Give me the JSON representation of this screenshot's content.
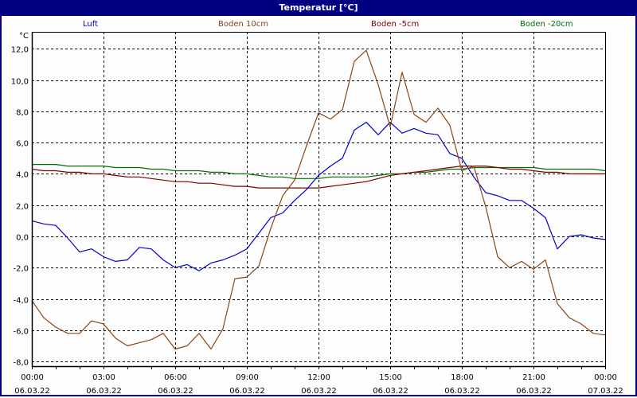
{
  "window": {
    "title": "Temperatur [°C]"
  },
  "legend": [
    {
      "label": "Luft",
      "color": "#0000cc"
    },
    {
      "label": "Boden 10cm",
      "color": "#8b4513"
    },
    {
      "label": "Boden -5cm",
      "color": "#800000"
    },
    {
      "label": "Boden -20cm",
      "color": "#007000"
    }
  ],
  "axis": {
    "y_unit": "°C",
    "y_ticks": [
      "12,0",
      "10,0",
      "8,0",
      "6,0",
      "4,0",
      "2,0",
      "0,0",
      "-2,0",
      "-4,0",
      "-6,0",
      "-8,0"
    ],
    "x_ticks": [
      {
        "time": "00:00",
        "date": "06.03.22"
      },
      {
        "time": "03:00",
        "date": "06.03.22"
      },
      {
        "time": "06:00",
        "date": "06.03.22"
      },
      {
        "time": "09:00",
        "date": "06.03.22"
      },
      {
        "time": "12:00",
        "date": "06.03.22"
      },
      {
        "time": "15:00",
        "date": "06.03.22"
      },
      {
        "time": "18:00",
        "date": "06.03.22"
      },
      {
        "time": "21:00",
        "date": "06.03.22"
      },
      {
        "time": "00:00",
        "date": "07.03.22"
      }
    ]
  },
  "chart_data": {
    "type": "line",
    "title": "Temperatur [°C]",
    "xlabel": "",
    "ylabel": "°C",
    "ylim": [
      -8.2,
      13.0
    ],
    "grid": true,
    "legend_position": "top",
    "x": [
      "00:00",
      "00:30",
      "01:00",
      "01:30",
      "02:00",
      "02:30",
      "03:00",
      "03:30",
      "04:00",
      "04:30",
      "05:00",
      "05:30",
      "06:00",
      "06:30",
      "07:00",
      "07:30",
      "08:00",
      "08:30",
      "09:00",
      "09:30",
      "10:00",
      "10:30",
      "11:00",
      "11:30",
      "12:00",
      "12:30",
      "13:00",
      "13:30",
      "14:00",
      "14:30",
      "15:00",
      "15:30",
      "16:00",
      "16:30",
      "17:00",
      "17:30",
      "18:00",
      "18:30",
      "19:00",
      "19:30",
      "20:00",
      "20:30",
      "21:00",
      "21:30",
      "22:00",
      "22:30",
      "23:00",
      "23:30",
      "00:00"
    ],
    "series": [
      {
        "name": "Luft",
        "color": "#0000cc",
        "values": [
          1.0,
          0.8,
          0.7,
          -0.1,
          -1.0,
          -0.8,
          -1.3,
          -1.6,
          -1.5,
          -0.7,
          -0.8,
          -1.5,
          -2.0,
          -1.8,
          -2.2,
          -1.7,
          -1.5,
          -1.2,
          -0.8,
          0.2,
          1.2,
          1.5,
          2.3,
          3.0,
          3.9,
          4.5,
          5.0,
          6.8,
          7.3,
          6.5,
          7.3,
          6.6,
          6.9,
          6.6,
          6.5,
          5.3,
          5.0,
          3.8,
          2.8,
          2.6,
          2.3,
          2.3,
          1.8,
          1.2,
          -0.8,
          0.0,
          0.1,
          -0.1,
          -0.2
        ]
      },
      {
        "name": "Boden 10cm",
        "color": "#8b4513",
        "values": [
          -4.1,
          -5.2,
          -5.8,
          -6.2,
          -6.2,
          -5.4,
          -5.6,
          -6.5,
          -7.0,
          -6.8,
          -6.6,
          -6.2,
          -7.2,
          -7.0,
          -6.2,
          -7.2,
          -5.9,
          -2.7,
          -2.6,
          -1.9,
          0.5,
          2.6,
          3.6,
          5.8,
          7.9,
          7.5,
          8.1,
          11.2,
          11.9,
          9.7,
          7.0,
          10.5,
          7.8,
          7.3,
          8.2,
          7.1,
          4.2,
          4.5,
          1.9,
          -1.3,
          -2.0,
          -1.6,
          -2.1,
          -1.5,
          -4.3,
          -5.2,
          -5.6,
          -6.2,
          -6.3
        ]
      },
      {
        "name": "Boden -5cm",
        "color": "#800000",
        "values": [
          4.3,
          4.2,
          4.2,
          4.1,
          4.1,
          4.0,
          4.0,
          3.9,
          3.8,
          3.8,
          3.7,
          3.6,
          3.5,
          3.5,
          3.4,
          3.4,
          3.3,
          3.2,
          3.2,
          3.1,
          3.1,
          3.1,
          3.1,
          3.1,
          3.1,
          3.2,
          3.3,
          3.4,
          3.5,
          3.7,
          3.9,
          4.0,
          4.1,
          4.2,
          4.3,
          4.4,
          4.5,
          4.5,
          4.5,
          4.4,
          4.3,
          4.3,
          4.2,
          4.1,
          4.1,
          4.0,
          4.0,
          4.0,
          4.0
        ]
      },
      {
        "name": "Boden -20cm",
        "color": "#007000",
        "values": [
          4.6,
          4.6,
          4.6,
          4.5,
          4.5,
          4.5,
          4.5,
          4.4,
          4.4,
          4.4,
          4.3,
          4.3,
          4.2,
          4.2,
          4.2,
          4.1,
          4.1,
          4.0,
          4.0,
          3.9,
          3.8,
          3.8,
          3.7,
          3.7,
          3.7,
          3.8,
          3.8,
          3.8,
          3.8,
          3.9,
          4.0,
          4.0,
          4.1,
          4.1,
          4.2,
          4.3,
          4.3,
          4.4,
          4.4,
          4.4,
          4.4,
          4.4,
          4.4,
          4.3,
          4.3,
          4.3,
          4.3,
          4.3,
          4.2
        ]
      }
    ]
  }
}
